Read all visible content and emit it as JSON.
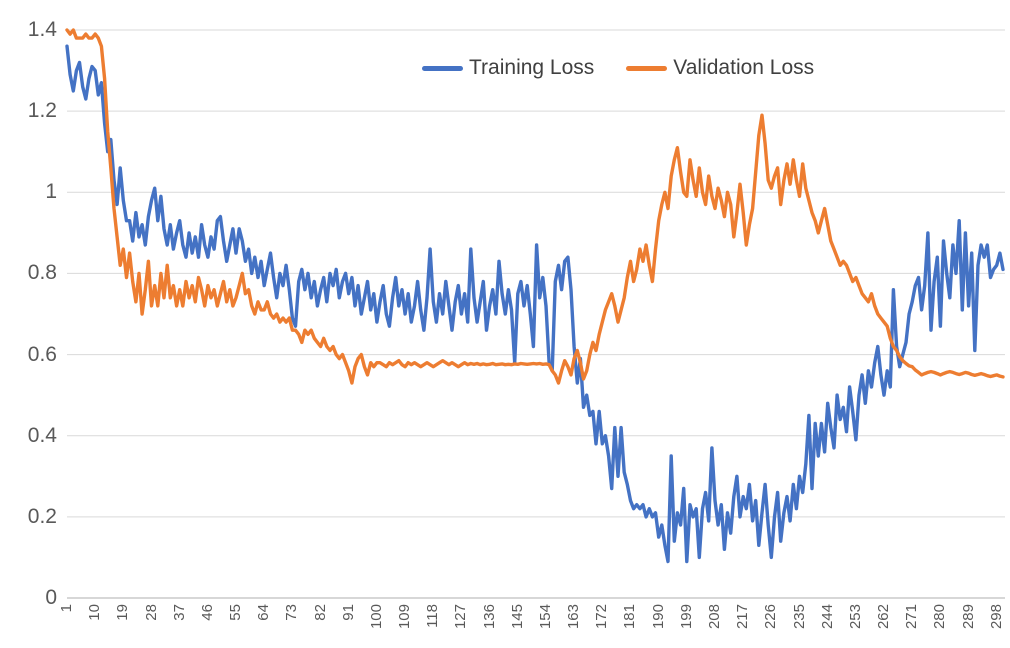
{
  "chart_data": {
    "type": "line",
    "title": "",
    "xlabel": "",
    "ylabel": "",
    "x_range": [
      1,
      300
    ],
    "y_range": [
      0,
      1.4
    ],
    "grid": true,
    "legend_position": "top-center",
    "y_tick_labels": [
      "0",
      "0.2",
      "0.4",
      "0.6",
      "0.8",
      "1",
      "1.2",
      "1.4"
    ],
    "y_tick_values": [
      0,
      0.2,
      0.4,
      0.6,
      0.8,
      1.0,
      1.2,
      1.4
    ],
    "x_tick_labels": [
      "1",
      "10",
      "19",
      "28",
      "37",
      "46",
      "55",
      "64",
      "73",
      "82",
      "91",
      "100",
      "109",
      "118",
      "127",
      "136",
      "145",
      "154",
      "163",
      "172",
      "181",
      "190",
      "199",
      "208",
      "217",
      "226",
      "235",
      "244",
      "253",
      "262",
      "271",
      "280",
      "289",
      "298"
    ],
    "series": [
      {
        "name": "Training Loss",
        "color": "#4472C4",
        "values": [
          1.36,
          1.29,
          1.25,
          1.3,
          1.32,
          1.26,
          1.23,
          1.28,
          1.31,
          1.3,
          1.24,
          1.27,
          1.17,
          1.1,
          1.13,
          1.03,
          0.97,
          1.06,
          0.98,
          0.93,
          0.93,
          0.88,
          0.95,
          0.89,
          0.92,
          0.87,
          0.94,
          0.98,
          1.01,
          0.93,
          0.99,
          0.91,
          0.87,
          0.92,
          0.86,
          0.9,
          0.93,
          0.87,
          0.84,
          0.9,
          0.85,
          0.89,
          0.84,
          0.92,
          0.87,
          0.84,
          0.89,
          0.86,
          0.93,
          0.94,
          0.88,
          0.83,
          0.87,
          0.91,
          0.85,
          0.91,
          0.88,
          0.83,
          0.86,
          0.8,
          0.84,
          0.79,
          0.83,
          0.77,
          0.81,
          0.85,
          0.79,
          0.74,
          0.8,
          0.77,
          0.82,
          0.76,
          0.69,
          0.67,
          0.78,
          0.81,
          0.76,
          0.8,
          0.74,
          0.78,
          0.72,
          0.76,
          0.79,
          0.73,
          0.8,
          0.77,
          0.81,
          0.74,
          0.78,
          0.8,
          0.75,
          0.79,
          0.72,
          0.77,
          0.7,
          0.74,
          0.78,
          0.71,
          0.75,
          0.68,
          0.73,
          0.77,
          0.7,
          0.67,
          0.74,
          0.79,
          0.72,
          0.76,
          0.7,
          0.75,
          0.68,
          0.72,
          0.78,
          0.71,
          0.66,
          0.74,
          0.86,
          0.73,
          0.68,
          0.75,
          0.7,
          0.78,
          0.72,
          0.66,
          0.73,
          0.77,
          0.7,
          0.75,
          0.68,
          0.86,
          0.74,
          0.68,
          0.73,
          0.78,
          0.66,
          0.72,
          0.76,
          0.7,
          0.83,
          0.75,
          0.7,
          0.76,
          0.71,
          0.58,
          0.75,
          0.78,
          0.72,
          0.77,
          0.7,
          0.62,
          0.87,
          0.74,
          0.79,
          0.72,
          0.58,
          0.56,
          0.78,
          0.82,
          0.76,
          0.83,
          0.84,
          0.76,
          0.62,
          0.53,
          0.59,
          0.47,
          0.5,
          0.45,
          0.46,
          0.38,
          0.46,
          0.38,
          0.4,
          0.35,
          0.27,
          0.42,
          0.3,
          0.42,
          0.31,
          0.28,
          0.24,
          0.22,
          0.23,
          0.22,
          0.23,
          0.2,
          0.22,
          0.2,
          0.21,
          0.15,
          0.18,
          0.13,
          0.09,
          0.35,
          0.14,
          0.21,
          0.18,
          0.27,
          0.09,
          0.23,
          0.2,
          0.22,
          0.1,
          0.22,
          0.26,
          0.19,
          0.37,
          0.24,
          0.18,
          0.23,
          0.12,
          0.21,
          0.16,
          0.25,
          0.3,
          0.2,
          0.25,
          0.22,
          0.28,
          0.19,
          0.24,
          0.13,
          0.21,
          0.28,
          0.18,
          0.1,
          0.2,
          0.26,
          0.14,
          0.21,
          0.25,
          0.19,
          0.28,
          0.22,
          0.3,
          0.26,
          0.33,
          0.45,
          0.27,
          0.43,
          0.35,
          0.43,
          0.36,
          0.48,
          0.42,
          0.37,
          0.5,
          0.44,
          0.47,
          0.41,
          0.52,
          0.46,
          0.39,
          0.5,
          0.55,
          0.48,
          0.56,
          0.52,
          0.58,
          0.62,
          0.55,
          0.5,
          0.56,
          0.52,
          0.76,
          0.62,
          0.57,
          0.6,
          0.63,
          0.7,
          0.73,
          0.77,
          0.79,
          0.71,
          0.77,
          0.9,
          0.66,
          0.78,
          0.84,
          0.67,
          0.88,
          0.8,
          0.74,
          0.87,
          0.8,
          0.93,
          0.71,
          0.9,
          0.72,
          0.85,
          0.61,
          0.82,
          0.87,
          0.84,
          0.87,
          0.79,
          0.81,
          0.82,
          0.85,
          0.81
        ]
      },
      {
        "name": "Validation Loss",
        "color": "#ED7D31",
        "values": [
          1.4,
          1.39,
          1.4,
          1.38,
          1.38,
          1.38,
          1.39,
          1.38,
          1.38,
          1.39,
          1.38,
          1.36,
          1.28,
          1.15,
          1.06,
          0.96,
          0.89,
          0.82,
          0.86,
          0.79,
          0.85,
          0.78,
          0.73,
          0.8,
          0.7,
          0.76,
          0.83,
          0.72,
          0.77,
          0.72,
          0.8,
          0.74,
          0.82,
          0.74,
          0.77,
          0.72,
          0.76,
          0.72,
          0.78,
          0.74,
          0.77,
          0.73,
          0.79,
          0.76,
          0.72,
          0.77,
          0.74,
          0.76,
          0.72,
          0.75,
          0.78,
          0.73,
          0.76,
          0.72,
          0.74,
          0.77,
          0.8,
          0.75,
          0.76,
          0.72,
          0.7,
          0.73,
          0.71,
          0.71,
          0.73,
          0.7,
          0.69,
          0.7,
          0.68,
          0.69,
          0.68,
          0.69,
          0.66,
          0.66,
          0.65,
          0.63,
          0.66,
          0.65,
          0.66,
          0.64,
          0.63,
          0.62,
          0.64,
          0.62,
          0.61,
          0.62,
          0.6,
          0.59,
          0.6,
          0.58,
          0.56,
          0.53,
          0.57,
          0.59,
          0.6,
          0.57,
          0.55,
          0.58,
          0.57,
          0.58,
          0.58,
          0.575,
          0.57,
          0.58,
          0.575,
          0.58,
          0.585,
          0.575,
          0.57,
          0.58,
          0.575,
          0.58,
          0.575,
          0.57,
          0.575,
          0.58,
          0.575,
          0.57,
          0.575,
          0.58,
          0.585,
          0.58,
          0.575,
          0.58,
          0.575,
          0.57,
          0.575,
          0.58,
          0.575,
          0.578,
          0.576,
          0.578,
          0.575,
          0.577,
          0.575,
          0.576,
          0.578,
          0.575,
          0.576,
          0.577,
          0.575,
          0.576,
          0.575,
          0.577,
          0.576,
          0.578,
          0.577,
          0.576,
          0.577,
          0.578,
          0.577,
          0.578,
          0.576,
          0.577,
          0.575,
          0.56,
          0.55,
          0.53,
          0.56,
          0.585,
          0.57,
          0.55,
          0.59,
          0.61,
          0.58,
          0.54,
          0.56,
          0.6,
          0.63,
          0.61,
          0.65,
          0.68,
          0.71,
          0.73,
          0.75,
          0.72,
          0.68,
          0.71,
          0.74,
          0.79,
          0.83,
          0.78,
          0.81,
          0.86,
          0.83,
          0.87,
          0.82,
          0.78,
          0.86,
          0.93,
          0.97,
          1.0,
          0.96,
          1.04,
          1.08,
          1.11,
          1.05,
          1.0,
          0.99,
          1.08,
          1.03,
          0.99,
          1.06,
          1.0,
          0.97,
          1.04,
          0.99,
          0.96,
          1.01,
          0.98,
          0.94,
          1.0,
          0.97,
          0.89,
          0.95,
          1.02,
          0.95,
          0.87,
          0.92,
          0.96,
          1.05,
          1.14,
          1.19,
          1.12,
          1.03,
          1.01,
          1.04,
          1.06,
          0.97,
          1.03,
          1.07,
          1.02,
          1.08,
          1.03,
          0.99,
          1.07,
          1.01,
          0.98,
          0.95,
          0.93,
          0.9,
          0.93,
          0.96,
          0.92,
          0.88,
          0.86,
          0.84,
          0.82,
          0.83,
          0.82,
          0.8,
          0.78,
          0.79,
          0.77,
          0.75,
          0.74,
          0.73,
          0.75,
          0.72,
          0.7,
          0.69,
          0.68,
          0.67,
          0.64,
          0.62,
          0.61,
          0.595,
          0.585,
          0.578,
          0.572,
          0.57,
          0.562,
          0.556,
          0.55,
          0.553,
          0.556,
          0.558,
          0.556,
          0.553,
          0.55,
          0.553,
          0.556,
          0.558,
          0.556,
          0.553,
          0.551,
          0.553,
          0.556,
          0.554,
          0.551,
          0.549,
          0.551,
          0.553,
          0.551,
          0.548,
          0.546,
          0.548,
          0.55,
          0.547,
          0.545
        ]
      }
    ]
  },
  "colors": {
    "gridline": "#D9D9D9",
    "axis_line": "#BFBFBF",
    "tick_label": "#595959",
    "legend_text": "#404040",
    "background": "#FFFFFF"
  }
}
